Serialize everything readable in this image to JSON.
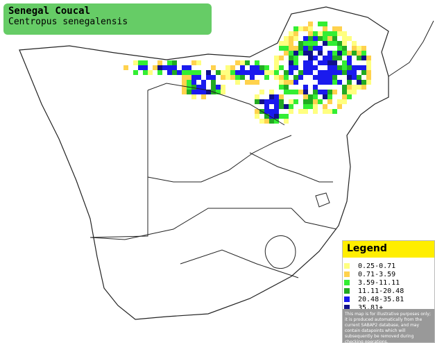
{
  "title": "Senegal Coucal",
  "subtitle": "Centropus senegalensis",
  "legend": {
    "title": "Legend",
    "items": [
      {
        "label": "0.25-0.71",
        "color": "#ffff80"
      },
      {
        "label": "0.71-3.59",
        "color": "#ffd24d"
      },
      {
        "label": "3.59-11.11",
        "color": "#33ee33"
      },
      {
        "label": "11.11-20.48",
        "color": "#22aa22"
      },
      {
        "label": "20.48-35.81",
        "color": "#1a1aee"
      },
      {
        "label": "35.81+",
        "color": "#10108a"
      }
    ],
    "disclaimer": "This map is for illustrative purposes only; it is produced automatically from the current SABAP2 database, and may contain datapoints which will subsequently be removed during checking operations."
  }
}
